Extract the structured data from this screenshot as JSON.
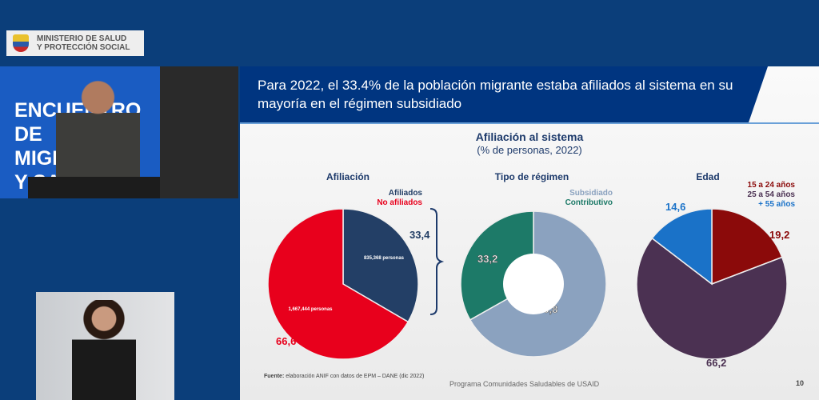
{
  "logo": {
    "line1": "MINISTERIO DE SALUD",
    "line2": "Y PROTECCIÓN SOCIAL"
  },
  "video": {
    "banner": "ENCUENTRO DE MIGRANTES Y SALUD"
  },
  "slide": {
    "title": "Para 2022, el 33.4% de la población migrante estaba afiliados al sistema en su mayoría en el régimen subsidiado",
    "chart_title": "Afiliación al sistema",
    "chart_subtitle": "(% de personas, 2022)",
    "source_label": "Fuente:",
    "source": "elaboración ANIF con datos de EPM – DANE (dic 2022)",
    "footer": "Programa Comunidades Saludables de USAID",
    "page": "10"
  },
  "chart_data": [
    {
      "type": "pie",
      "title": "Afiliación",
      "series": [
        {
          "name": "Afiliados",
          "value": 33.4,
          "label": "33,4",
          "note": "835,368 personas",
          "color": "#233f66"
        },
        {
          "name": "No afiliados",
          "value": 66.6,
          "label": "66,6",
          "note": "1,667,444 personas",
          "color": "#e8001c"
        }
      ]
    },
    {
      "type": "pie",
      "donut": true,
      "title": "Tipo de régimen",
      "series": [
        {
          "name": "Subsidiado",
          "value": 66.8,
          "label": "66,8",
          "color": "#8ba2bf"
        },
        {
          "name": "Contributivo",
          "value": 33.2,
          "label": "33,2",
          "color": "#1d7a68"
        }
      ]
    },
    {
      "type": "pie",
      "title": "Edad",
      "series": [
        {
          "name": "15 a 24 años",
          "value": 19.2,
          "label": "19,2",
          "color": "#8b0a0a"
        },
        {
          "name": "25 a 54 años",
          "value": 66.2,
          "label": "66,2",
          "color": "#4b3152"
        },
        {
          "name": "+ 55 años",
          "value": 14.6,
          "label": "14,6",
          "color": "#1a72c8"
        }
      ]
    }
  ]
}
